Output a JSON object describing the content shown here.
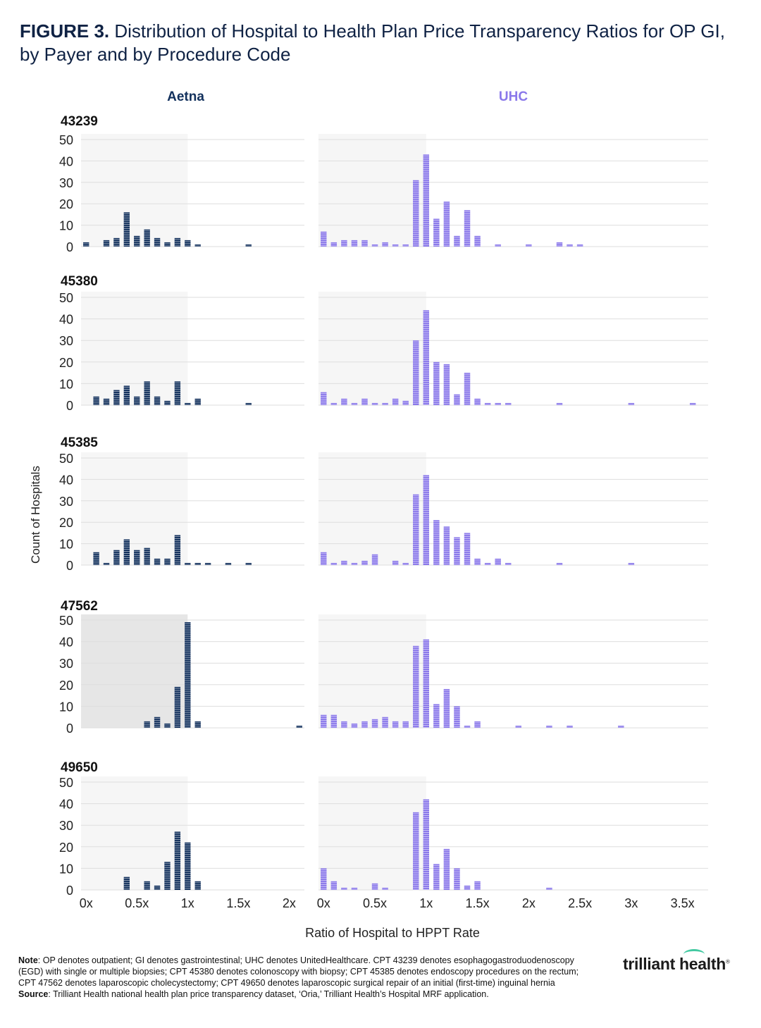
{
  "title": {
    "prefix": "FIGURE 3.",
    "text": "Distribution of Hospital to Health Plan Price Transparency Ratios for OP GI, by Payer and by Procedure Code"
  },
  "colors": {
    "aetna": "#12305c",
    "uhc": "#8a78ea",
    "shade_light": "#f6f6f6",
    "shade_dark": "#e6e6e6",
    "grid": "#dedede"
  },
  "chart_data": {
    "type": "bar",
    "subtype": "small-multiple histograms",
    "ylabel": "Count of Hospitals",
    "xlabel": "Ratio of Hospital to HPPT Rate",
    "ylim": [
      0,
      50
    ],
    "yticks": [
      0,
      10,
      20,
      30,
      40,
      50
    ],
    "grid": true,
    "columns": [
      {
        "payer": "Aetna",
        "xlim": [
          -0.05,
          2.15
        ],
        "xticks": [
          0,
          0.5,
          1,
          1.5,
          2
        ],
        "xtick_labels": [
          "0x",
          "0.5x",
          "1x",
          "1.5x",
          "2x"
        ]
      },
      {
        "payer": "UHC",
        "xlim": [
          -0.05,
          3.75
        ],
        "xticks": [
          0,
          0.5,
          1,
          1.5,
          2,
          2.5,
          3,
          3.5
        ],
        "xtick_labels": [
          "0x",
          "0.5x",
          "1x",
          "1.5x",
          "2x",
          "2.5x",
          "3x",
          "3.5x"
        ]
      }
    ],
    "panels": [
      {
        "code": "43239",
        "payer": "Aetna",
        "shade_to": 1.0,
        "bins": [
          [
            0.0,
            2
          ],
          [
            0.2,
            3
          ],
          [
            0.3,
            4
          ],
          [
            0.4,
            16
          ],
          [
            0.5,
            5
          ],
          [
            0.6,
            8
          ],
          [
            0.7,
            4
          ],
          [
            0.8,
            2
          ],
          [
            0.9,
            4
          ],
          [
            1.0,
            3
          ],
          [
            1.1,
            1
          ],
          [
            1.6,
            1
          ]
        ]
      },
      {
        "code": "43239",
        "payer": "UHC",
        "shade_to": 1.0,
        "bins": [
          [
            0.0,
            7
          ],
          [
            0.1,
            2
          ],
          [
            0.2,
            3
          ],
          [
            0.3,
            3
          ],
          [
            0.4,
            3
          ],
          [
            0.5,
            1
          ],
          [
            0.6,
            2
          ],
          [
            0.7,
            1
          ],
          [
            0.8,
            1
          ],
          [
            0.9,
            31
          ],
          [
            1.0,
            43
          ],
          [
            1.1,
            13
          ],
          [
            1.2,
            21
          ],
          [
            1.3,
            5
          ],
          [
            1.4,
            17
          ],
          [
            1.5,
            5
          ],
          [
            1.7,
            1
          ],
          [
            2.0,
            1
          ],
          [
            2.3,
            2
          ],
          [
            2.4,
            1
          ],
          [
            2.5,
            1
          ]
        ]
      },
      {
        "code": "45380",
        "payer": "Aetna",
        "shade_to": 1.0,
        "bins": [
          [
            0.1,
            4
          ],
          [
            0.2,
            3
          ],
          [
            0.3,
            7
          ],
          [
            0.4,
            9
          ],
          [
            0.5,
            4
          ],
          [
            0.6,
            11
          ],
          [
            0.7,
            4
          ],
          [
            0.8,
            2
          ],
          [
            0.9,
            11
          ],
          [
            1.0,
            1
          ],
          [
            1.1,
            3
          ],
          [
            1.6,
            1
          ]
        ]
      },
      {
        "code": "45380",
        "payer": "UHC",
        "shade_to": 1.0,
        "bins": [
          [
            0.0,
            6
          ],
          [
            0.1,
            1
          ],
          [
            0.2,
            3
          ],
          [
            0.3,
            1
          ],
          [
            0.4,
            3
          ],
          [
            0.5,
            1
          ],
          [
            0.6,
            1
          ],
          [
            0.7,
            3
          ],
          [
            0.8,
            2
          ],
          [
            0.9,
            30
          ],
          [
            1.0,
            44
          ],
          [
            1.1,
            20
          ],
          [
            1.2,
            19
          ],
          [
            1.3,
            5
          ],
          [
            1.4,
            15
          ],
          [
            1.5,
            3
          ],
          [
            1.6,
            1
          ],
          [
            1.7,
            1
          ],
          [
            1.8,
            1
          ],
          [
            2.3,
            1
          ],
          [
            3.0,
            1
          ],
          [
            3.6,
            1
          ]
        ]
      },
      {
        "code": "45385",
        "payer": "Aetna",
        "shade_to": 1.0,
        "bins": [
          [
            0.1,
            6
          ],
          [
            0.2,
            1
          ],
          [
            0.3,
            7
          ],
          [
            0.4,
            12
          ],
          [
            0.5,
            7
          ],
          [
            0.6,
            8
          ],
          [
            0.7,
            3
          ],
          [
            0.8,
            3
          ],
          [
            0.9,
            14
          ],
          [
            1.0,
            1
          ],
          [
            1.1,
            1
          ],
          [
            1.2,
            1
          ],
          [
            1.4,
            1
          ],
          [
            1.6,
            1
          ]
        ]
      },
      {
        "code": "45385",
        "payer": "UHC",
        "shade_to": 1.0,
        "bins": [
          [
            0.0,
            6
          ],
          [
            0.1,
            1
          ],
          [
            0.2,
            2
          ],
          [
            0.3,
            1
          ],
          [
            0.4,
            2
          ],
          [
            0.5,
            5
          ],
          [
            0.7,
            2
          ],
          [
            0.8,
            1
          ],
          [
            0.9,
            33
          ],
          [
            1.0,
            42
          ],
          [
            1.1,
            21
          ],
          [
            1.2,
            18
          ],
          [
            1.3,
            13
          ],
          [
            1.4,
            15
          ],
          [
            1.5,
            3
          ],
          [
            1.6,
            1
          ],
          [
            1.7,
            3
          ],
          [
            1.8,
            1
          ],
          [
            2.3,
            1
          ],
          [
            3.0,
            1
          ]
        ]
      },
      {
        "code": "47562",
        "payer": "Aetna",
        "shade_to": 1.0,
        "shade_dark": true,
        "bins": [
          [
            0.6,
            3
          ],
          [
            0.7,
            5
          ],
          [
            0.8,
            2
          ],
          [
            0.9,
            19
          ],
          [
            1.0,
            49
          ],
          [
            1.1,
            3
          ],
          [
            2.1,
            1
          ]
        ]
      },
      {
        "code": "47562",
        "payer": "UHC",
        "shade_to": 1.0,
        "bins": [
          [
            0.0,
            6
          ],
          [
            0.1,
            6
          ],
          [
            0.2,
            3
          ],
          [
            0.3,
            2
          ],
          [
            0.4,
            3
          ],
          [
            0.5,
            4
          ],
          [
            0.6,
            5
          ],
          [
            0.7,
            3
          ],
          [
            0.8,
            3
          ],
          [
            0.9,
            38
          ],
          [
            1.0,
            41
          ],
          [
            1.1,
            11
          ],
          [
            1.2,
            18
          ],
          [
            1.3,
            10
          ],
          [
            1.4,
            1
          ],
          [
            1.5,
            3
          ],
          [
            1.9,
            1
          ],
          [
            2.2,
            1
          ],
          [
            2.4,
            1
          ],
          [
            2.9,
            1
          ]
        ]
      },
      {
        "code": "49650",
        "payer": "Aetna",
        "shade_to": 1.0,
        "bins": [
          [
            0.4,
            6
          ],
          [
            0.6,
            4
          ],
          [
            0.7,
            2
          ],
          [
            0.8,
            13
          ],
          [
            0.9,
            27
          ],
          [
            1.0,
            22
          ],
          [
            1.1,
            4
          ]
        ]
      },
      {
        "code": "49650",
        "payer": "UHC",
        "shade_to": 1.0,
        "bins": [
          [
            0.0,
            10
          ],
          [
            0.1,
            4
          ],
          [
            0.2,
            1
          ],
          [
            0.3,
            1
          ],
          [
            0.5,
            3
          ],
          [
            0.6,
            1
          ],
          [
            0.9,
            36
          ],
          [
            1.0,
            42
          ],
          [
            1.1,
            12
          ],
          [
            1.2,
            19
          ],
          [
            1.3,
            10
          ],
          [
            1.4,
            2
          ],
          [
            1.5,
            4
          ],
          [
            2.2,
            1
          ]
        ]
      }
    ]
  },
  "notes": {
    "note_label": "Note",
    "note_text": ": OP denotes outpatient; GI denotes gastrointestinal; UHC denotes UnitedHealthcare. CPT 43239 denotes esophagogastroduodenoscopy (EGD) with single or multiple biopsies; CPT 45380 denotes colonoscopy with biopsy; CPT 45385 denotes endoscopy procedures on the rectum; CPT 47562 denotes laparoscopic cholecystectomy; CPT 49650 denotes laparoscopic surgical repair of an initial (first-time) inguinal hernia",
    "source_label": "Source",
    "source_text": ": Trilliant Health national health plan price transparency dataset, ‘Oria,’ Trilliant Health’s Hospital MRF application."
  },
  "logo": {
    "text": "trilliant health",
    "mark": "®"
  }
}
